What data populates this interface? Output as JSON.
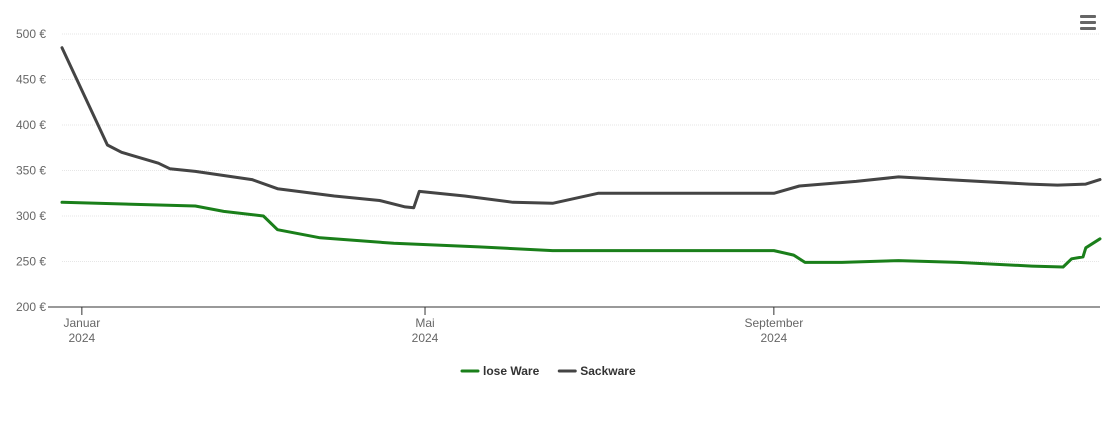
{
  "menu": {
    "icon": "hamburger-menu-icon"
  },
  "chart_data": {
    "type": "line",
    "x_ticks": [
      {
        "date": "2024-01-01",
        "label": "Januar",
        "year": "2024"
      },
      {
        "date": "2024-05-01",
        "label": "Mai",
        "year": "2024"
      },
      {
        "date": "2024-09-01",
        "label": "September",
        "year": "2024"
      }
    ],
    "y_ticks": [
      "500 €",
      "450 €",
      "400 €",
      "350 €",
      "300 €",
      "250 €",
      "200 €"
    ],
    "ylim": [
      200,
      500
    ],
    "xlim": [
      "2023-12-25",
      "2024-12-25"
    ],
    "grid": true,
    "legend_position": "bottom",
    "series": [
      {
        "name": "lose Ware",
        "color": "#1a7f1a",
        "points": [
          [
            "2023-12-25",
            315
          ],
          [
            "2024-02-10",
            311
          ],
          [
            "2024-02-20",
            305
          ],
          [
            "2024-03-05",
            300
          ],
          [
            "2024-03-10",
            285
          ],
          [
            "2024-03-25",
            276
          ],
          [
            "2024-04-20",
            270
          ],
          [
            "2024-05-20",
            266
          ],
          [
            "2024-06-15",
            262
          ],
          [
            "2024-07-15",
            262
          ],
          [
            "2024-08-15",
            262
          ],
          [
            "2024-09-01",
            262
          ],
          [
            "2024-09-08",
            257
          ],
          [
            "2024-09-12",
            249
          ],
          [
            "2024-09-25",
            249
          ],
          [
            "2024-10-15",
            251
          ],
          [
            "2024-11-05",
            249
          ],
          [
            "2024-12-01",
            245
          ],
          [
            "2024-12-12",
            244
          ],
          [
            "2024-12-15",
            253
          ],
          [
            "2024-12-19",
            255
          ],
          [
            "2024-12-20",
            265
          ],
          [
            "2024-12-25",
            275
          ]
        ]
      },
      {
        "name": "Sackware",
        "color": "#444444",
        "points": [
          [
            "2023-12-25",
            485
          ],
          [
            "2024-01-10",
            378
          ],
          [
            "2024-01-15",
            370
          ],
          [
            "2024-01-28",
            358
          ],
          [
            "2024-02-01",
            352
          ],
          [
            "2024-02-10",
            349
          ],
          [
            "2024-03-01",
            340
          ],
          [
            "2024-03-10",
            330
          ],
          [
            "2024-03-30",
            322
          ],
          [
            "2024-04-15",
            317
          ],
          [
            "2024-04-24",
            310
          ],
          [
            "2024-04-27",
            309
          ],
          [
            "2024-04-29",
            327
          ],
          [
            "2024-05-15",
            322
          ],
          [
            "2024-06-01",
            315
          ],
          [
            "2024-06-15",
            314
          ],
          [
            "2024-07-01",
            325
          ],
          [
            "2024-08-01",
            325
          ],
          [
            "2024-09-01",
            325
          ],
          [
            "2024-09-10",
            333
          ],
          [
            "2024-09-30",
            338
          ],
          [
            "2024-10-15",
            343
          ],
          [
            "2024-11-01",
            340
          ],
          [
            "2024-11-30",
            335
          ],
          [
            "2024-12-10",
            334
          ],
          [
            "2024-12-20",
            335
          ],
          [
            "2024-12-25",
            340
          ]
        ]
      }
    ]
  }
}
